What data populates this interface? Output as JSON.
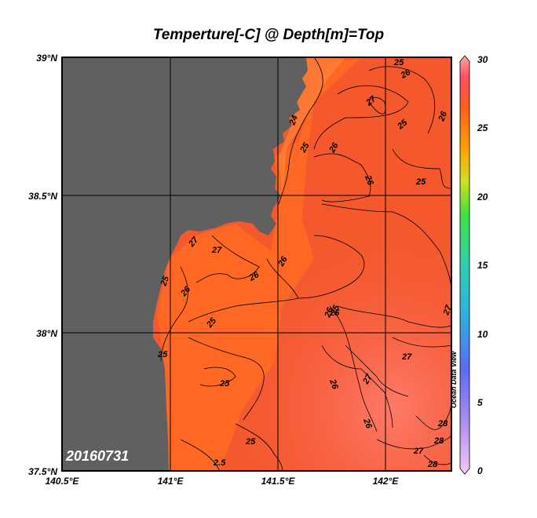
{
  "title": "Temperture[-C] @ Depth[m]=Top",
  "date_label": "20160731",
  "watermark": "Ocean Data View",
  "lat_labels": [
    "39°N",
    "38.5°N",
    "38°N",
    "37.5°N"
  ],
  "lon_labels": [
    "140.5°E",
    "141°E",
    "141.5°E",
    "142°E"
  ],
  "colorbar": {
    "ticks": [
      "30",
      "25",
      "20",
      "15",
      "10",
      "5",
      "0"
    ]
  },
  "contour_labels": [
    "25",
    "26",
    "27",
    "26",
    "25",
    "24",
    "25",
    "26",
    "27",
    "26",
    "25",
    "27",
    "26",
    "26",
    "25",
    "26",
    "26",
    "25",
    "27",
    "25",
    "25",
    "25",
    "25",
    "26",
    "27",
    "27",
    "26",
    "28",
    "27",
    "28",
    "2.5",
    "25",
    "28"
  ],
  "colors": {
    "land": "#606060",
    "ocean": "#ff6b35",
    "ocean_dark": "#f2522a",
    "ocean_light": "#ff8a3a"
  }
}
